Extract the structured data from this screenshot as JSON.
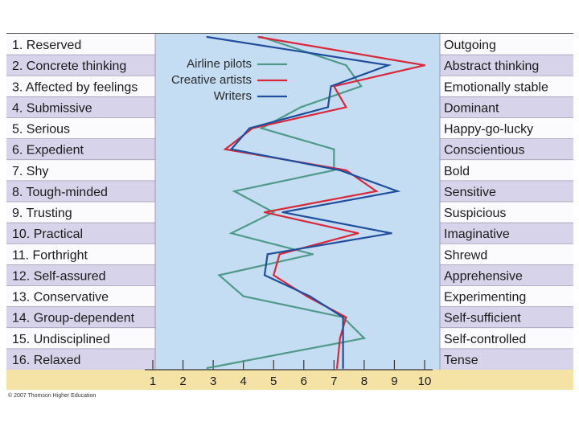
{
  "chart_data": {
    "type": "line",
    "orientation": "horizontal-profile",
    "title": "",
    "xlabel": "",
    "ylabel": "",
    "xlim": [
      1,
      10
    ],
    "x_ticks": [
      "1",
      "2",
      "3",
      "4",
      "5",
      "6",
      "7",
      "8",
      "9",
      "10"
    ],
    "left_labels": [
      "1. Reserved",
      "2. Concrete thinking",
      "3. Affected by feelings",
      "4. Submissive",
      "5. Serious",
      "6. Expedient",
      "7. Shy",
      "8. Tough-minded",
      "9. Trusting",
      "10. Practical",
      "11. Forthright",
      "12. Self-assured",
      "13. Conservative",
      "14. Group-dependent",
      "15. Undisciplined",
      "16. Relaxed"
    ],
    "right_labels": [
      "Outgoing",
      "Abstract thinking",
      "Emotionally stable",
      "Dominant",
      "Happy-go-lucky",
      "Conscientious",
      "Bold",
      "Sensitive",
      "Suspicious",
      "Imaginative",
      "Shrewd",
      "Apprehensive",
      "Experimenting",
      "Self-sufficient",
      "Self-controlled",
      "Tense"
    ],
    "series": [
      {
        "name": "Airline pilots",
        "color": "#4f9a8a",
        "values": [
          4.6,
          7.4,
          7.9,
          5.9,
          4.6,
          7.0,
          7.0,
          3.7,
          5.0,
          3.6,
          6.3,
          3.2,
          4.0,
          7.3,
          8.0,
          2.8
        ]
      },
      {
        "name": "Creative artists",
        "color": "#d8283a",
        "values": [
          4.5,
          10.0,
          7.0,
          7.4,
          4.3,
          3.4,
          7.4,
          8.4,
          4.7,
          7.8,
          5.2,
          5.0,
          6.1,
          7.4,
          7.2,
          7.1
        ]
      },
      {
        "name": "Writers",
        "color": "#1f4e9c",
        "values": [
          2.8,
          8.8,
          6.9,
          6.8,
          4.2,
          3.6,
          7.2,
          9.1,
          5.3,
          8.9,
          4.8,
          4.7,
          6.2,
          7.3,
          7.3,
          7.3
        ]
      }
    ]
  },
  "copyright": "© 2007 Thomson Higher Education"
}
